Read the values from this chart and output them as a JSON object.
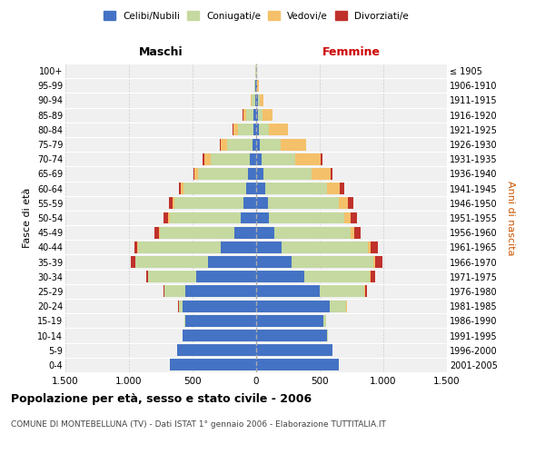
{
  "age_groups": [
    "0-4",
    "5-9",
    "10-14",
    "15-19",
    "20-24",
    "25-29",
    "30-34",
    "35-39",
    "40-44",
    "45-49",
    "50-54",
    "55-59",
    "60-64",
    "65-69",
    "70-74",
    "75-79",
    "80-84",
    "85-89",
    "90-94",
    "95-99",
    "100+"
  ],
  "birth_years": [
    "2001-2005",
    "1996-2000",
    "1991-1995",
    "1986-1990",
    "1981-1985",
    "1976-1980",
    "1971-1975",
    "1966-1970",
    "1961-1965",
    "1956-1960",
    "1951-1955",
    "1946-1950",
    "1941-1945",
    "1936-1940",
    "1931-1935",
    "1926-1930",
    "1921-1925",
    "1916-1920",
    "1911-1915",
    "1906-1910",
    "≤ 1905"
  ],
  "males": {
    "celibe": [
      680,
      620,
      580,
      560,
      580,
      560,
      470,
      380,
      280,
      170,
      120,
      100,
      80,
      65,
      50,
      30,
      20,
      18,
      10,
      5,
      2
    ],
    "coniugato": [
      0,
      1,
      2,
      5,
      30,
      160,
      380,
      570,
      650,
      590,
      560,
      540,
      490,
      390,
      310,
      200,
      120,
      60,
      25,
      8,
      2
    ],
    "vedovo": [
      0,
      0,
      0,
      0,
      0,
      1,
      2,
      3,
      5,
      5,
      10,
      15,
      20,
      30,
      50,
      50,
      40,
      25,
      10,
      4,
      1
    ],
    "divorziato": [
      0,
      0,
      0,
      0,
      2,
      5,
      15,
      30,
      25,
      35,
      40,
      30,
      20,
      10,
      8,
      5,
      3,
      2,
      1,
      0,
      0
    ]
  },
  "females": {
    "nubile": [
      650,
      600,
      560,
      530,
      580,
      500,
      380,
      280,
      200,
      140,
      100,
      90,
      70,
      55,
      40,
      30,
      20,
      15,
      12,
      5,
      2
    ],
    "coniugata": [
      0,
      2,
      5,
      20,
      130,
      350,
      510,
      640,
      680,
      600,
      590,
      560,
      490,
      380,
      270,
      160,
      80,
      35,
      15,
      5,
      2
    ],
    "vedova": [
      0,
      0,
      0,
      0,
      2,
      5,
      10,
      15,
      20,
      30,
      50,
      70,
      100,
      150,
      200,
      200,
      150,
      80,
      30,
      10,
      2
    ],
    "divorziata": [
      0,
      0,
      0,
      1,
      5,
      15,
      35,
      55,
      60,
      50,
      55,
      45,
      30,
      15,
      8,
      5,
      3,
      2,
      1,
      0,
      0
    ]
  },
  "colors": {
    "celibe": "#4472C4",
    "coniugato": "#c5d9a0",
    "vedovo": "#f4c06a",
    "divorziato": "#c0312b"
  },
  "legend_labels": [
    "Celibi/Nubili",
    "Coniugati/e",
    "Vedovi/e",
    "Divorziati/e"
  ],
  "title": "Popolazione per età, sesso e stato civile - 2006",
  "subtitle": "COMUNE DI MONTEBELLUNA (TV) - Dati ISTAT 1° gennaio 2006 - Elaborazione TUTTITALIA.IT",
  "ylabel_left": "Fasce di età",
  "ylabel_right": "Anni di nascita",
  "xlabel_left": "Maschi",
  "xlabel_right": "Femmine",
  "xlim": 1500,
  "bg_color": "#f0f0f0",
  "grid_color": "#cccccc"
}
